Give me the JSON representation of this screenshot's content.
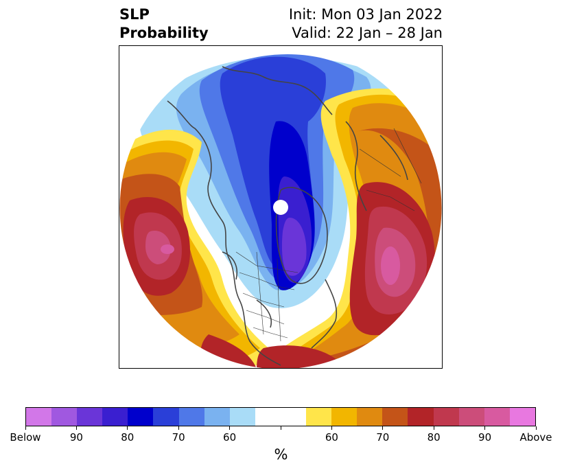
{
  "title": {
    "left_line1": "SLP",
    "left_line2": "Probability",
    "right_line1": "Init: Mon 03 Jan 2022",
    "right_line2": "Valid: 22 Jan – 28 Jan"
  },
  "map": {
    "projection": "north-polar-stereographic",
    "fill_colors": {
      "below_strong": "#6a35d8",
      "below_90": "#3a1fd0",
      "below_85": "#0000cc",
      "below_80": "#2a3fd8",
      "below_70": "#4f78e8",
      "below_65": "#7ab2f0",
      "below_60": "#a9dcf7",
      "neutral": "#ffffff",
      "above_60": "#ffe54a",
      "above_65": "#f2b600",
      "above_70": "#e08a10",
      "above_75": "#c45418",
      "above_80": "#b22428",
      "above_85": "#c0384e",
      "above_90": "#cc4d7a",
      "above_strong": "#d85aa0"
    }
  },
  "colorbar": {
    "colors": [
      "#d277e8",
      "#a058e0",
      "#6a35d8",
      "#3a1fd0",
      "#0000cc",
      "#2a3fd8",
      "#4f78e8",
      "#7ab2f0",
      "#a9dcf7",
      "#ffffff",
      "#ffffff",
      "#ffe54a",
      "#f2b600",
      "#e08a10",
      "#c45418",
      "#b22428",
      "#c0384e",
      "#cc4d7a",
      "#d85aa0",
      "#e878e0"
    ],
    "tick_labels": [
      "Below",
      "90",
      "80",
      "70",
      "60",
      "",
      "60",
      "70",
      "80",
      "90",
      "Above"
    ],
    "unit_label": "%"
  }
}
